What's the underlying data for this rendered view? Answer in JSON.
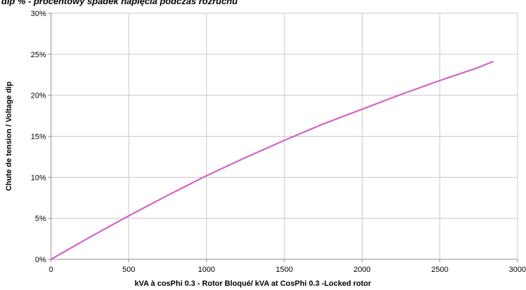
{
  "chart_data": {
    "type": "line",
    "title": "dip % - procentowy spadek napięcia podczas rozruchu",
    "xlabel": "kVA à cosPhi 0.3 - Rotor Bloqué/ kVA at CosPhi  0.3 -Locked rotor",
    "ylabel": "Chute de tension / Voltage dip",
    "xlim": [
      0,
      3000
    ],
    "ylim": [
      0,
      30
    ],
    "x_ticks": [
      0,
      500,
      1000,
      1500,
      2000,
      2500,
      3000
    ],
    "y_ticks": [
      0,
      5,
      10,
      15,
      20,
      25,
      30
    ],
    "x_tick_labels": [
      "0",
      "500",
      "1000",
      "1500",
      "2000",
      "2500",
      "3000"
    ],
    "y_tick_labels": [
      "0%",
      "5%",
      "10%",
      "15%",
      "20%",
      "25%",
      "30%"
    ],
    "grid": true,
    "legend": "none",
    "series": [
      {
        "color": "#d264c6",
        "x": [
          0,
          250,
          500,
          750,
          1000,
          1250,
          1500,
          1750,
          2000,
          2250,
          2500,
          2750,
          2840
        ],
        "y": [
          0,
          2.7,
          5.3,
          7.8,
          10.2,
          12.4,
          14.5,
          16.5,
          18.3,
          20.1,
          21.8,
          23.4,
          24.1
        ]
      }
    ]
  },
  "colors": {
    "line": "#d264c6",
    "grid": "#c8c8c8",
    "axis": "#8c8c8c",
    "background": "#ffffff"
  }
}
